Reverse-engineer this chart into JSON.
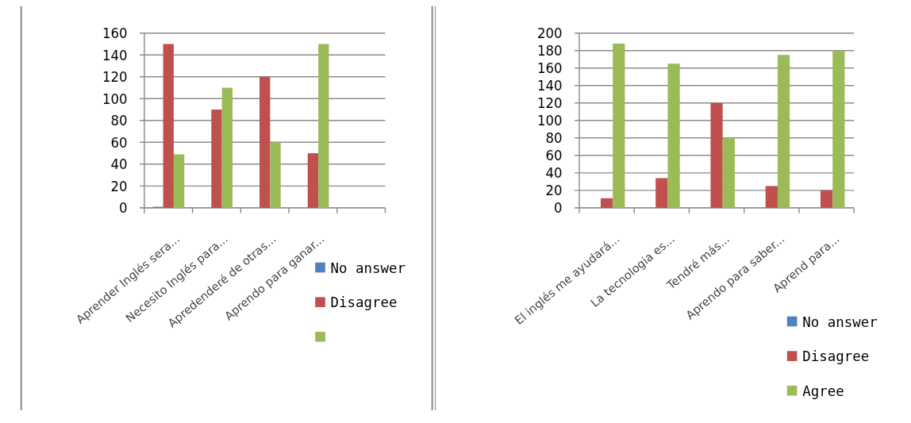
{
  "chart_data": [
    {
      "type": "bar",
      "categories": [
        "Aprender Inglés sera...",
        "Necesito Inglés para...",
        "Apredenderé de otras...",
        "Aprendo para ganar...",
        null
      ],
      "series": [
        {
          "name": "No answer",
          "color": "#4f81bd",
          "values": [
            1,
            0,
            0,
            0,
            null
          ]
        },
        {
          "name": "Disagree",
          "color": "#c0504d",
          "values": [
            150,
            90,
            120,
            50,
            null
          ]
        },
        {
          "color": "#9bbb59",
          "values": [
            49,
            110,
            60,
            150,
            null
          ]
        }
      ],
      "ylim": [
        0,
        160
      ],
      "yticks": [
        0,
        20,
        40,
        60,
        80,
        100,
        120,
        140,
        160
      ],
      "grid": "y",
      "legend": "bottom right"
    },
    {
      "type": "bar",
      "categories": [
        "El inglés me ayudará...",
        "La tecnologia es...",
        "Tendré más...",
        "Aprendo para saber...",
        "Aprend para..."
      ],
      "series": [
        {
          "name": "No answer",
          "color": "#4f81bd",
          "values": [
            0,
            0,
            0,
            0,
            0
          ]
        },
        {
          "name": "Disagree",
          "color": "#c0504d",
          "values": [
            11,
            34,
            120,
            25,
            20
          ]
        },
        {
          "name": "Agree",
          "color": "#9bbb59",
          "values": [
            188,
            165,
            80,
            175,
            180
          ]
        }
      ],
      "ylim": [
        0,
        200
      ],
      "yticks": [
        0,
        20,
        40,
        60,
        80,
        100,
        120,
        140,
        160,
        180,
        200
      ],
      "grid": "y",
      "legend": "bottom right"
    }
  ]
}
